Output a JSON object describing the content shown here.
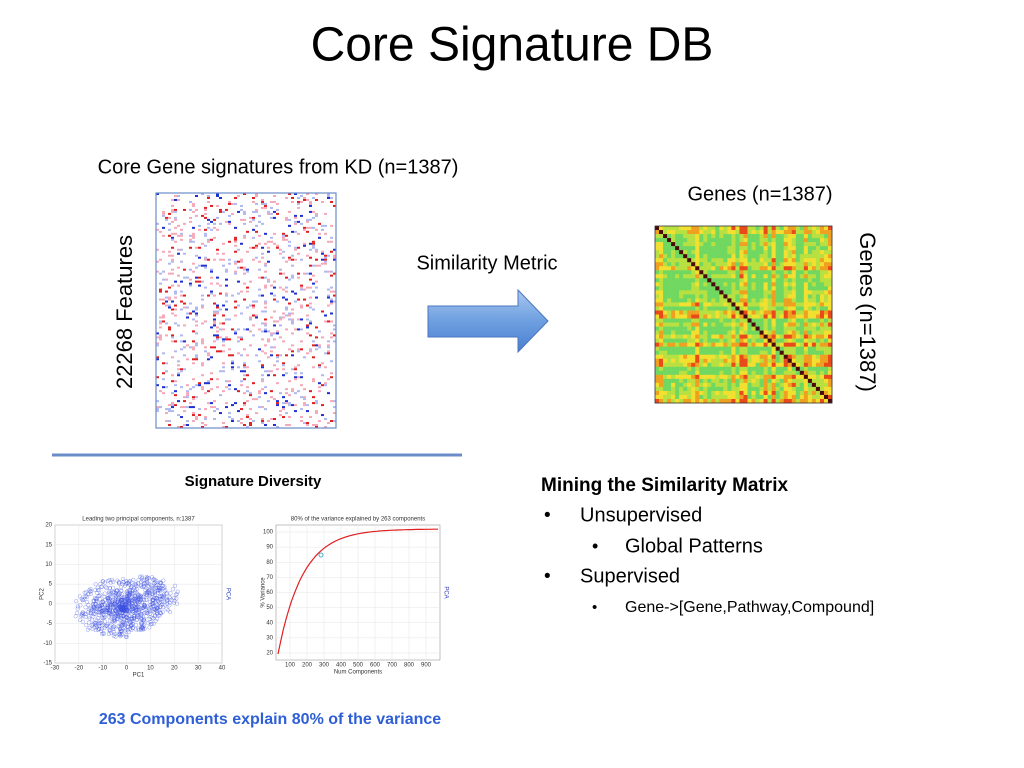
{
  "title": "Core Signature DB",
  "left_panel": {
    "caption": "Core Gene signatures from KD (n=1387)",
    "y_label": "22268 Features"
  },
  "arrow_label": "Similarity Metric",
  "right_panel": {
    "top_label": "Genes (n=1387)",
    "side_label": "Genes (n=1387)"
  },
  "diversity": {
    "heading": "Signature Diversity",
    "pca_plot": {
      "title": "Leading two principal components, n:1387",
      "x_label": "PC1",
      "y_label": "PC2",
      "side_label": "PCA",
      "xticks": [
        -30,
        -20,
        -10,
        0,
        10,
        20,
        30,
        40
      ],
      "yticks": [
        -15,
        -10,
        -5,
        0,
        5,
        10,
        15,
        20
      ]
    },
    "variance_plot": {
      "title": "80% of the variance explained by 263 components",
      "x_label": "Num Components",
      "y_label": "% Variance",
      "side_label": "PCA",
      "xticks": [
        100,
        200,
        300,
        400,
        500,
        600,
        700,
        800,
        900
      ],
      "yticks": [
        20,
        30,
        40,
        50,
        60,
        70,
        80,
        90,
        100
      ]
    },
    "footer": "263 Components explain 80% of the variance"
  },
  "mining": {
    "heading": "Mining the Similarity Matrix",
    "items": [
      {
        "text": "Unsupervised",
        "subitems": [
          "Global Patterns"
        ]
      },
      {
        "text": "Supervised",
        "subitems": [
          "Gene->[Gene,Pathway,Compound]"
        ]
      }
    ]
  }
}
